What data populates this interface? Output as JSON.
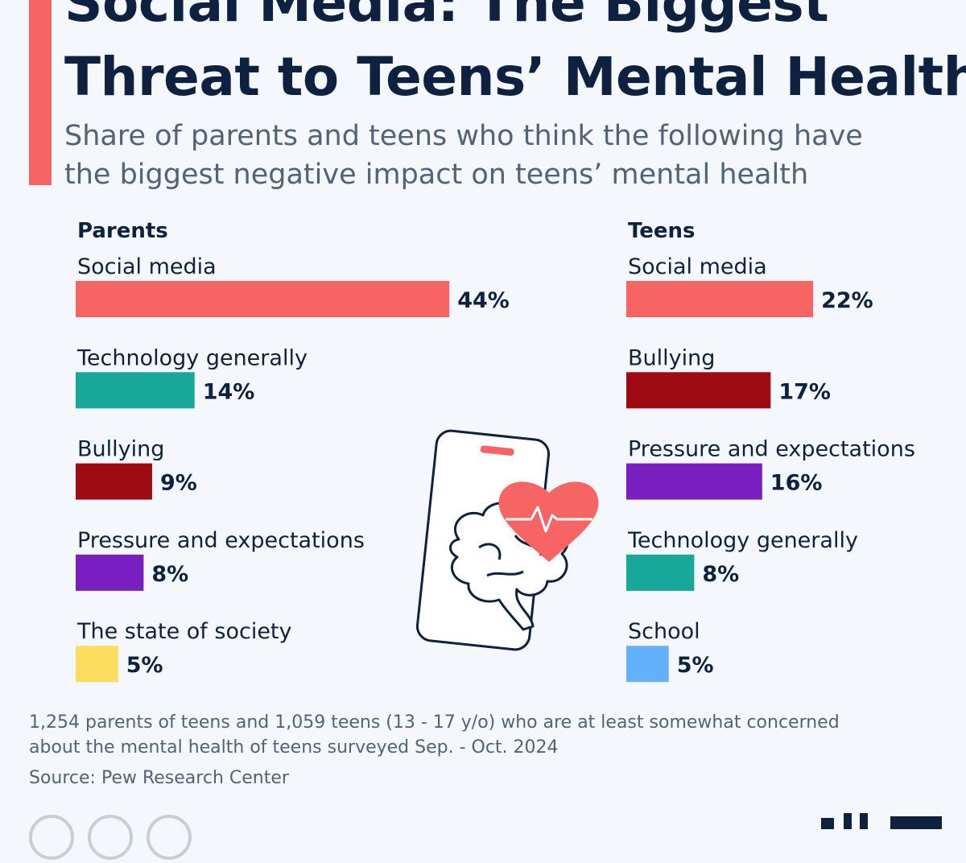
{
  "header": {
    "title_line1": "Social Media: The Biggest",
    "title_line2": "Threat to Teens’ Mental Health?",
    "subtitle_line1": "Share of parents and teens who think the following have",
    "subtitle_line2": "the biggest negative impact on teens’ mental health"
  },
  "colors": {
    "accent": "#f76464",
    "social_media": "#f76464",
    "technology": "#17a899",
    "bullying": "#9e0b13",
    "pressure": "#7a1fbf",
    "society": "#fcdc5c",
    "school": "#64b1fb",
    "text_dark": "#0f2140",
    "text_muted": "#51637b"
  },
  "chart_data": [
    {
      "type": "bar",
      "orientation": "horizontal",
      "title": "Parents",
      "categories": [
        "Social media",
        "Technology generally",
        "Bullying",
        "Pressure and expectations",
        "The state of society"
      ],
      "values": [
        44,
        14,
        9,
        8,
        5
      ],
      "value_labels": [
        "44%",
        "14%",
        "9%",
        "8%",
        "5%"
      ],
      "colors": [
        "#f76464",
        "#17a899",
        "#9e0b13",
        "#7a1fbf",
        "#fcdc5c"
      ],
      "unit": "%"
    },
    {
      "type": "bar",
      "orientation": "horizontal",
      "title": "Teens",
      "categories": [
        "Social media",
        "Bullying",
        "Pressure and expectations",
        "Technology generally",
        "School"
      ],
      "values": [
        22,
        17,
        16,
        8,
        5
      ],
      "value_labels": [
        "22%",
        "17%",
        "16%",
        "8%",
        "5%"
      ],
      "colors": [
        "#f76464",
        "#9e0b13",
        "#7a1fbf",
        "#17a899",
        "#64b1fb"
      ],
      "unit": "%"
    }
  ],
  "illustration": {
    "icon": "phone-heart-brain-icon"
  },
  "footer": {
    "note_line1": "1,254 parents of teens and 1,059 teens (13 - 17 y/o) who are at least somewhat concerned",
    "note_line2": "about the mental health of teens surveyed Sep. - Oct. 2024",
    "source": "Source: Pew Research Center"
  }
}
